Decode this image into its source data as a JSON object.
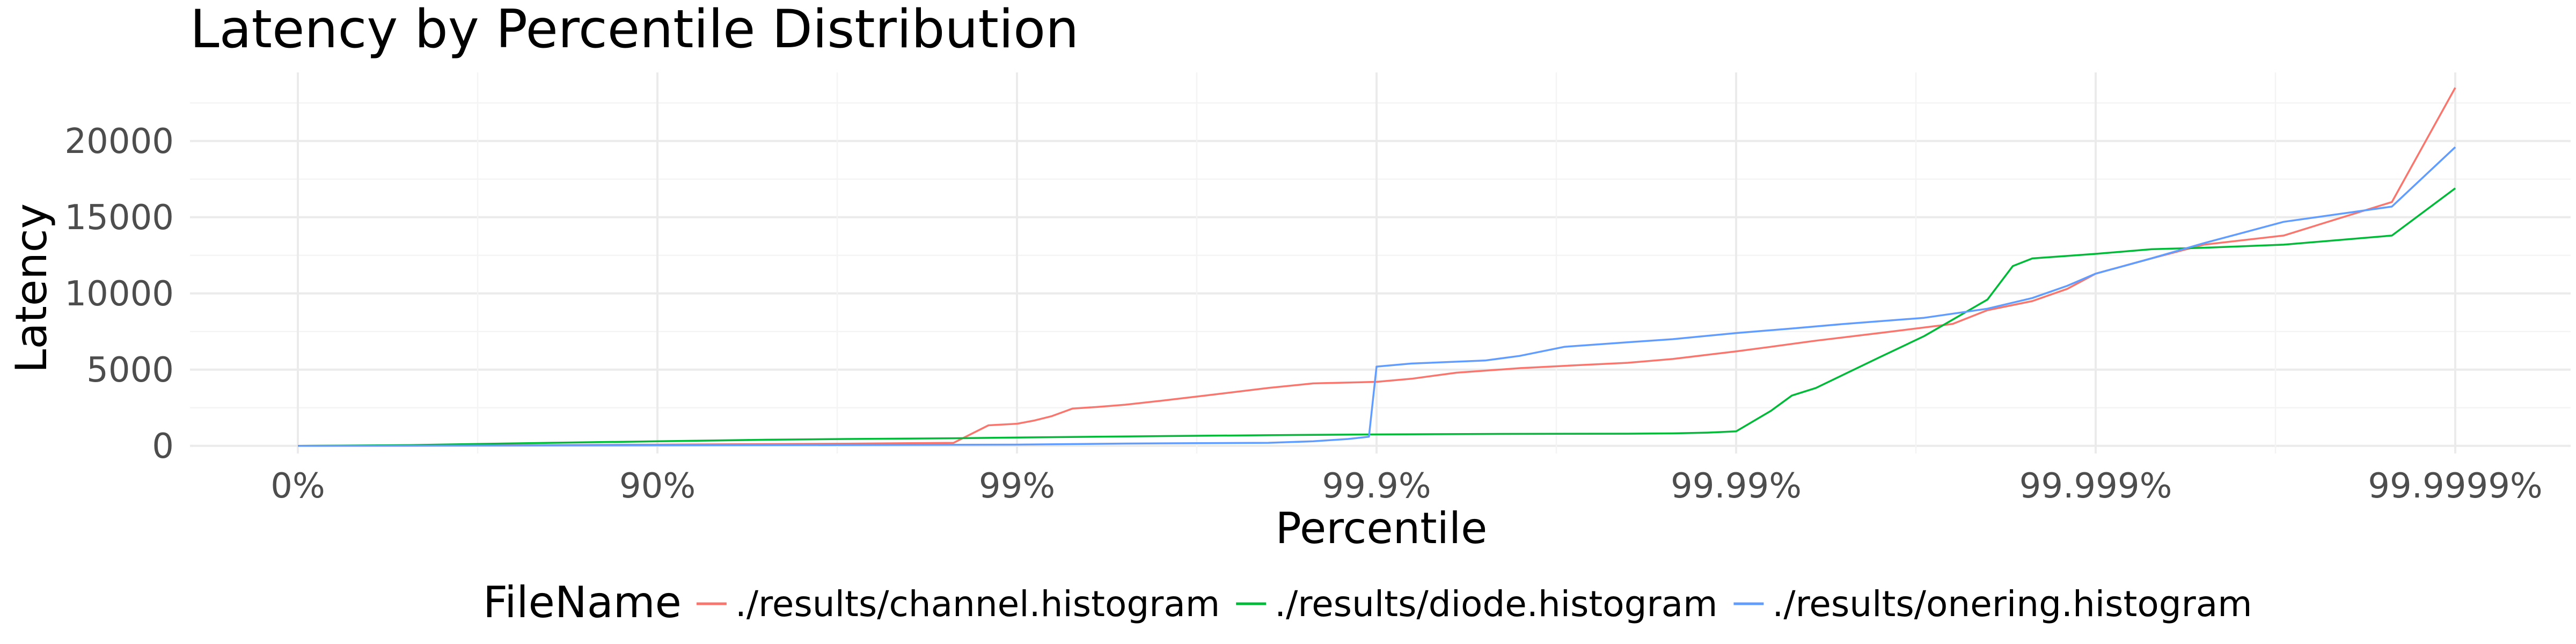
{
  "chart_data": {
    "type": "line",
    "title": "Latency by Percentile Distribution",
    "xlabel": "Percentile",
    "ylabel": "Latency",
    "x_scale": "log-inverse (1 / (1 - percentile))",
    "x_ticks": [
      "0%",
      "90%",
      "99%",
      "99.9%",
      "99.99%",
      "99.999%",
      "99.9999%"
    ],
    "y_ticks": [
      "0",
      "5000",
      "10000",
      "15000",
      "20000"
    ],
    "y_tick_values": [
      0,
      5000,
      10000,
      15000,
      20000
    ],
    "ylim": [
      -500,
      24500
    ],
    "grid": true,
    "legend": {
      "title": "FileName",
      "position": "bottom"
    },
    "series": [
      {
        "name": "./results/channel.histogram",
        "color": "#F8766D",
        "points": [
          [
            "0%",
            0
          ],
          [
            "50%",
            10
          ],
          [
            "90%",
            80
          ],
          [
            "97%",
            140
          ],
          [
            "98.5%",
            200
          ],
          [
            "98.8%",
            1350
          ],
          [
            "99%",
            1450
          ],
          [
            "99.1%",
            1650
          ],
          [
            "99.2%",
            1950
          ],
          [
            "99.3%",
            2450
          ],
          [
            "99.4%",
            2550
          ],
          [
            "99.5%",
            2700
          ],
          [
            "99.6%",
            2950
          ],
          [
            "99.7%",
            3300
          ],
          [
            "99.8%",
            3800
          ],
          [
            "99.85%",
            4100
          ],
          [
            "99.9%",
            4200
          ],
          [
            "99.92%",
            4400
          ],
          [
            "99.94%",
            4800
          ],
          [
            "99.96%",
            5100
          ],
          [
            "99.97%",
            5250
          ],
          [
            "99.98%",
            5450
          ],
          [
            "99.985%",
            5700
          ],
          [
            "99.99%",
            6200
          ],
          [
            "99.992%",
            6500
          ],
          [
            "99.994%",
            6900
          ],
          [
            "99.996%",
            7400
          ],
          [
            "99.9975%",
            8000
          ],
          [
            "99.998%",
            8900
          ],
          [
            "99.9985%",
            9500
          ],
          [
            "99.9988%",
            10300
          ],
          [
            "99.999%",
            11300
          ],
          [
            "99.9993%",
            12300
          ],
          [
            "99.9995%",
            13200
          ],
          [
            "99.9997%",
            13800
          ],
          [
            "99.99985%",
            16000
          ],
          [
            "99.9999%",
            23500
          ]
        ]
      },
      {
        "name": "./results/diode.histogram",
        "color": "#00BA38",
        "points": [
          [
            "0%",
            0
          ],
          [
            "50%",
            50
          ],
          [
            "80%",
            200
          ],
          [
            "90%",
            300
          ],
          [
            "95%",
            400
          ],
          [
            "97%",
            450
          ],
          [
            "98.5%",
            500
          ],
          [
            "99%",
            550
          ],
          [
            "99.5%",
            620
          ],
          [
            "99.8%",
            700
          ],
          [
            "99.9%",
            750
          ],
          [
            "99.95%",
            780
          ],
          [
            "99.98%",
            800
          ],
          [
            "99.985%",
            820
          ],
          [
            "99.988%",
            870
          ],
          [
            "99.99%",
            950
          ],
          [
            "99.992%",
            2300
          ],
          [
            "99.993%",
            3300
          ],
          [
            "99.994%",
            3800
          ],
          [
            "99.995%",
            4700
          ],
          [
            "99.996%",
            5800
          ],
          [
            "99.997%",
            7200
          ],
          [
            "99.998%",
            9600
          ],
          [
            "99.9983%",
            11800
          ],
          [
            "99.9985%",
            12300
          ],
          [
            "99.999%",
            12600
          ],
          [
            "99.9993%",
            12900
          ],
          [
            "99.9995%",
            13000
          ],
          [
            "99.9997%",
            13200
          ],
          [
            "99.99985%",
            13800
          ],
          [
            "99.9999%",
            16900
          ]
        ]
      },
      {
        "name": "./results/onering.histogram",
        "color": "#619CFF",
        "points": [
          [
            "0%",
            0
          ],
          [
            "90%",
            40
          ],
          [
            "97%",
            60
          ],
          [
            "99%",
            80
          ],
          [
            "99.5%",
            150
          ],
          [
            "99.8%",
            200
          ],
          [
            "99.85%",
            300
          ],
          [
            "99.88%",
            450
          ],
          [
            "99.895%",
            600
          ],
          [
            "99.9%",
            5200
          ],
          [
            "99.92%",
            5400
          ],
          [
            "99.95%",
            5600
          ],
          [
            "99.96%",
            5900
          ],
          [
            "99.97%",
            6500
          ],
          [
            "99.98%",
            6800
          ],
          [
            "99.985%",
            7000
          ],
          [
            "99.99%",
            7400
          ],
          [
            "99.993%",
            7700
          ],
          [
            "99.995%",
            8000
          ],
          [
            "99.997%",
            8400
          ],
          [
            "99.998%",
            9000
          ],
          [
            "99.9985%",
            9700
          ],
          [
            "99.9988%",
            10500
          ],
          [
            "99.999%",
            11300
          ],
          [
            "99.9993%",
            12300
          ],
          [
            "99.9995%",
            13300
          ],
          [
            "99.9997%",
            14700
          ],
          [
            "99.99985%",
            15700
          ],
          [
            "99.9999%",
            19600
          ]
        ]
      }
    ]
  }
}
